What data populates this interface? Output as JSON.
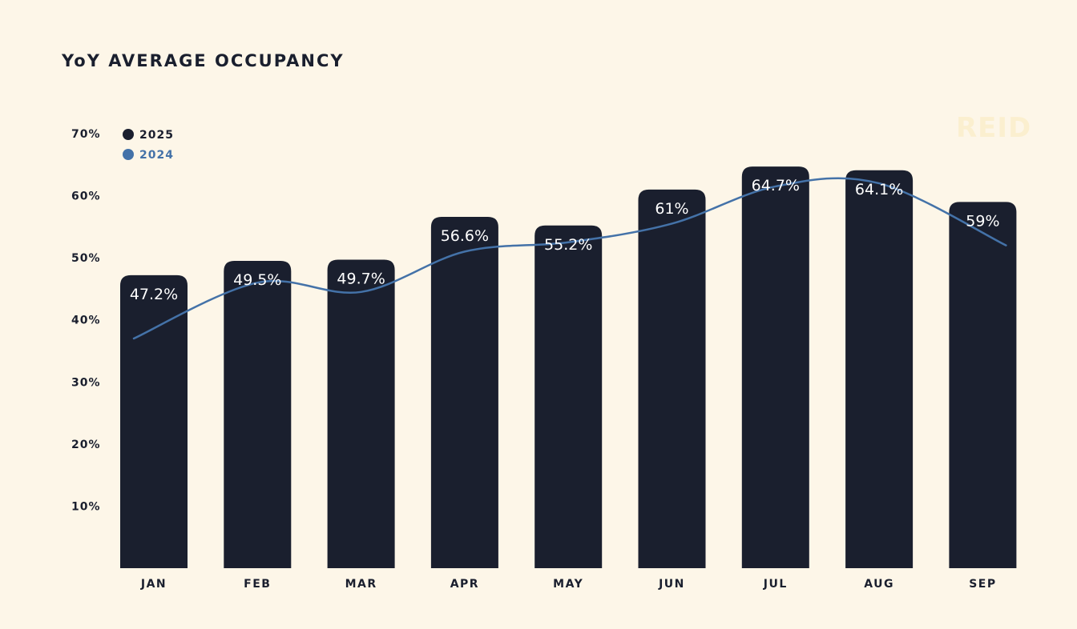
{
  "title": "YoY AVERAGE OCCUPANCY",
  "watermark": "REID",
  "colors": {
    "bar_2025": "#1a1f2e",
    "line_2024": "#4472a8",
    "background": "#fdf6e8"
  },
  "chart_data": {
    "type": "bar",
    "title": "YoY AVERAGE OCCUPANCY",
    "categories": [
      "JAN",
      "FEB",
      "MAR",
      "APR",
      "MAY",
      "JUN",
      "JUL",
      "AUG",
      "SEP"
    ],
    "series": [
      {
        "name": "2025",
        "type": "bar",
        "color": "#1a1f2e",
        "values": [
          47.2,
          49.5,
          49.7,
          56.6,
          55.2,
          61,
          64.7,
          64.1,
          59
        ],
        "labels": [
          "47.2%",
          "49.5%",
          "49.7%",
          "56.6%",
          "55.2%",
          "61%",
          "64.7%",
          "64.1%",
          "59%"
        ]
      },
      {
        "name": "2024",
        "type": "line",
        "color": "#4472a8",
        "values": [
          37,
          46,
          44.5,
          51,
          52.5,
          55.5,
          61.5,
          62,
          52
        ]
      }
    ],
    "yticks": [
      "10%",
      "20%",
      "30%",
      "40%",
      "50%",
      "60%",
      "70%"
    ],
    "ytick_values": [
      10,
      20,
      30,
      40,
      50,
      60,
      70
    ],
    "ylim": [
      0,
      70
    ],
    "legend_position": "top-left",
    "grid": false
  }
}
